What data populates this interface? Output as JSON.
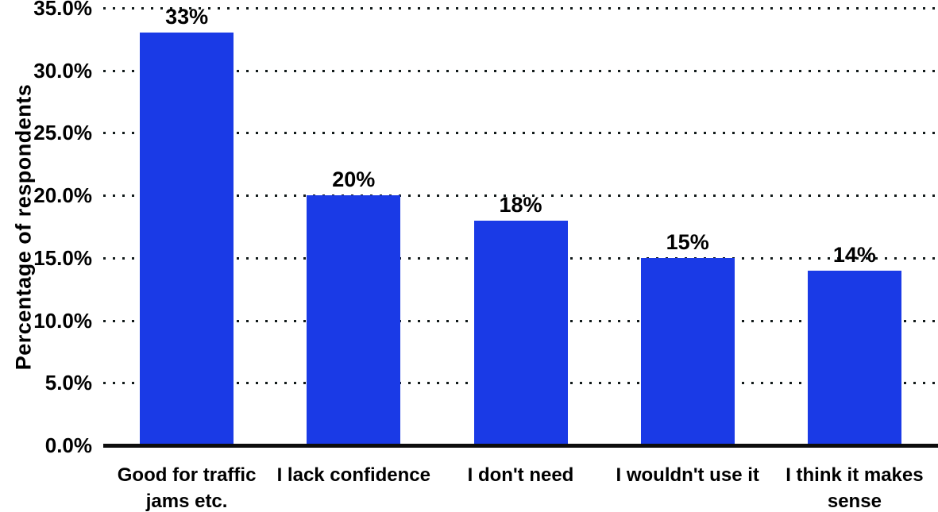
{
  "chart_data": {
    "type": "bar",
    "title": "",
    "xlabel": "",
    "ylabel": "Percentage of respondents",
    "categories": [
      "Good for traffic jams etc.",
      "I lack confidence",
      "I don't need",
      "I wouldn't use it",
      "I think it makes sense"
    ],
    "values": [
      33,
      20,
      18,
      15,
      14
    ],
    "data_labels": [
      "33%",
      "20%",
      "18%",
      "15%",
      "14%"
    ],
    "ylim": [
      0,
      35
    ],
    "ytick_step": 5,
    "ytick_labels": [
      "0.0%",
      "5.0%",
      "10.0%",
      "15.0%",
      "20.0%",
      "25.0%",
      "30.0%",
      "35.0%"
    ],
    "grid": "horizontal-dotted",
    "legend_position": "none",
    "colors": {
      "bar": "#1a3ae6",
      "axis": "#0d0d0d",
      "gridline": "#121a1a",
      "text": "#000000",
      "background": "#ffffff"
    }
  }
}
